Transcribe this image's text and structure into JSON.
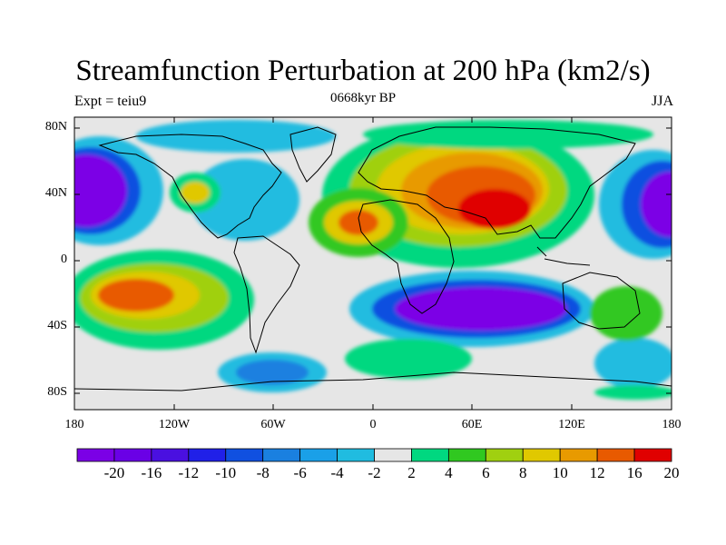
{
  "title": "Streamfunction Perturbation at 200 hPa (km2/s)",
  "center_string": "0668kyr BP",
  "left_string": "Expt = teiu9",
  "right_string": "JJA",
  "lat_labels": [
    "80N",
    "40N",
    "0",
    "40S",
    "80S"
  ],
  "lon_labels": [
    "180",
    "120W",
    "60W",
    "0",
    "60E",
    "120E",
    "180"
  ],
  "colorbar": {
    "labels": [
      "-20",
      "-16",
      "-12",
      "-10",
      "-8",
      "-6",
      "-4",
      "-2",
      "2",
      "4",
      "6",
      "8",
      "10",
      "12",
      "16",
      "20"
    ],
    "colors": [
      "#7b00e6",
      "#6a00e6",
      "#4a10e0",
      "#2020e8",
      "#1050e0",
      "#1a80e0",
      "#1aa0e8",
      "#20bce0",
      "#e6e6e6",
      "#00d880",
      "#30c820",
      "#a0d010",
      "#e0c800",
      "#e89a00",
      "#e85a00",
      "#e00000"
    ]
  },
  "background_color": "#e6e6e6"
}
